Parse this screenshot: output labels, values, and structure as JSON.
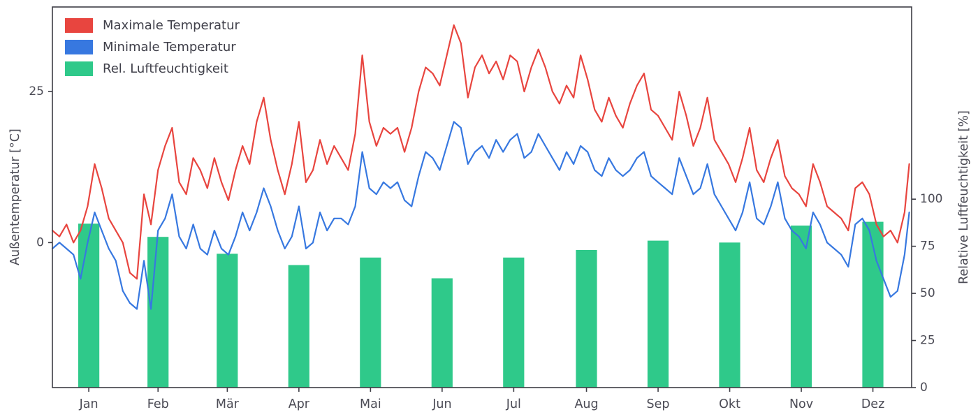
{
  "style": {
    "text_color": "#4b4b55",
    "spine_color": "#3d3d45",
    "background": "#ffffff"
  },
  "chart_data": {
    "type": "line+bar",
    "title": "",
    "left_axis": {
      "label": "Außentemperatur [°C]",
      "ticks": [
        0,
        25
      ],
      "lim": [
        -24,
        39
      ]
    },
    "right_axis": {
      "label": "Relative Luftfeuchtigkeit [%]",
      "ticks": [
        0,
        25,
        50,
        75,
        100
      ],
      "lim": [
        0,
        202
      ]
    },
    "x_axis": {
      "lim": [
        0,
        366
      ],
      "tick_days": [
        15.5,
        45,
        74.5,
        105,
        135.5,
        166,
        196.5,
        227.5,
        258,
        288.5,
        319,
        349.5
      ],
      "tick_labels": [
        "Jan",
        "Feb",
        "Mär",
        "Apr",
        "Mai",
        "Jun",
        "Jul",
        "Aug",
        "Sep",
        "Okt",
        "Nov",
        "Dez"
      ]
    },
    "legend": {
      "position": "upper-left"
    },
    "series": [
      {
        "name": "Maximale Temperatur",
        "type": "line",
        "axis": "left",
        "color": "#e8453f",
        "x": [
          0,
          3,
          6,
          9,
          12,
          15,
          18,
          21,
          24,
          27,
          30,
          33,
          36,
          39,
          42,
          45,
          48,
          51,
          54,
          57,
          60,
          63,
          66,
          69,
          72,
          75,
          78,
          81,
          84,
          87,
          90,
          93,
          96,
          99,
          102,
          105,
          108,
          111,
          114,
          117,
          120,
          123,
          126,
          129,
          132,
          135,
          138,
          141,
          144,
          147,
          150,
          153,
          156,
          159,
          162,
          165,
          168,
          171,
          174,
          177,
          180,
          183,
          186,
          189,
          192,
          195,
          198,
          201,
          204,
          207,
          210,
          213,
          216,
          219,
          222,
          225,
          228,
          231,
          234,
          237,
          240,
          243,
          246,
          249,
          252,
          255,
          258,
          261,
          264,
          267,
          270,
          273,
          276,
          279,
          282,
          285,
          288,
          291,
          294,
          297,
          300,
          303,
          306,
          309,
          312,
          315,
          318,
          321,
          324,
          327,
          330,
          333,
          336,
          339,
          342,
          345,
          348,
          351,
          354,
          357,
          360,
          363,
          365
        ],
        "values": [
          2,
          1,
          3,
          0,
          2,
          6,
          13,
          9,
          4,
          2,
          0,
          -5,
          -6,
          8,
          3,
          12,
          16,
          19,
          10,
          8,
          14,
          12,
          9,
          14,
          10,
          7,
          12,
          16,
          13,
          20,
          24,
          17,
          12,
          8,
          13,
          20,
          10,
          12,
          17,
          13,
          16,
          14,
          12,
          18,
          31,
          20,
          16,
          19,
          18,
          19,
          15,
          19,
          25,
          29,
          28,
          26,
          31,
          36,
          33,
          24,
          29,
          31,
          28,
          30,
          27,
          31,
          30,
          25,
          29,
          32,
          29,
          25,
          23,
          26,
          24,
          31,
          27,
          22,
          20,
          24,
          21,
          19,
          23,
          26,
          28,
          22,
          21,
          19,
          17,
          25,
          21,
          16,
          19,
          24,
          17,
          15,
          13,
          10,
          14,
          19,
          12,
          10,
          14,
          17,
          11,
          9,
          8,
          6,
          13,
          10,
          6,
          5,
          4,
          2,
          9,
          10,
          8,
          3,
          1,
          2,
          0,
          5,
          13
        ]
      },
      {
        "name": "Minimale Temperatur",
        "type": "line",
        "axis": "left",
        "color": "#3778e0",
        "x": [
          0,
          3,
          6,
          9,
          12,
          15,
          18,
          21,
          24,
          27,
          30,
          33,
          36,
          39,
          42,
          45,
          48,
          51,
          54,
          57,
          60,
          63,
          66,
          69,
          72,
          75,
          78,
          81,
          84,
          87,
          90,
          93,
          96,
          99,
          102,
          105,
          108,
          111,
          114,
          117,
          120,
          123,
          126,
          129,
          132,
          135,
          138,
          141,
          144,
          147,
          150,
          153,
          156,
          159,
          162,
          165,
          168,
          171,
          174,
          177,
          180,
          183,
          186,
          189,
          192,
          195,
          198,
          201,
          204,
          207,
          210,
          213,
          216,
          219,
          222,
          225,
          228,
          231,
          234,
          237,
          240,
          243,
          246,
          249,
          252,
          255,
          258,
          261,
          264,
          267,
          270,
          273,
          276,
          279,
          282,
          285,
          288,
          291,
          294,
          297,
          300,
          303,
          306,
          309,
          312,
          315,
          318,
          321,
          324,
          327,
          330,
          333,
          336,
          339,
          342,
          345,
          348,
          351,
          354,
          357,
          360,
          363,
          365
        ],
        "values": [
          -1,
          0,
          -1,
          -2,
          -6,
          0,
          5,
          2,
          -1,
          -3,
          -8,
          -10,
          -11,
          -3,
          -11,
          2,
          4,
          8,
          1,
          -1,
          3,
          -1,
          -2,
          2,
          -1,
          -2,
          1,
          5,
          2,
          5,
          9,
          6,
          2,
          -1,
          1,
          6,
          -1,
          0,
          5,
          2,
          4,
          4,
          3,
          6,
          15,
          9,
          8,
          10,
          9,
          10,
          7,
          6,
          11,
          15,
          14,
          12,
          16,
          20,
          19,
          13,
          15,
          16,
          14,
          17,
          15,
          17,
          18,
          14,
          15,
          18,
          16,
          14,
          12,
          15,
          13,
          16,
          15,
          12,
          11,
          14,
          12,
          11,
          12,
          14,
          15,
          11,
          10,
          9,
          8,
          14,
          11,
          8,
          9,
          13,
          8,
          6,
          4,
          2,
          5,
          10,
          4,
          3,
          6,
          10,
          4,
          2,
          1,
          -1,
          5,
          3,
          0,
          -1,
          -2,
          -4,
          3,
          4,
          2,
          -3,
          -6,
          -9,
          -8,
          -2,
          5
        ]
      },
      {
        "name": "Rel. Luftfeuchtigkeit",
        "type": "bar",
        "axis": "right",
        "color": "#2fc98a",
        "bar_width_days": 9,
        "x": [
          15.5,
          45,
          74.5,
          105,
          135.5,
          166,
          196.5,
          227.5,
          258,
          288.5,
          319,
          349.5
        ],
        "values": [
          87,
          80,
          71,
          65,
          69,
          58,
          69,
          73,
          78,
          77,
          86,
          88
        ]
      }
    ]
  }
}
